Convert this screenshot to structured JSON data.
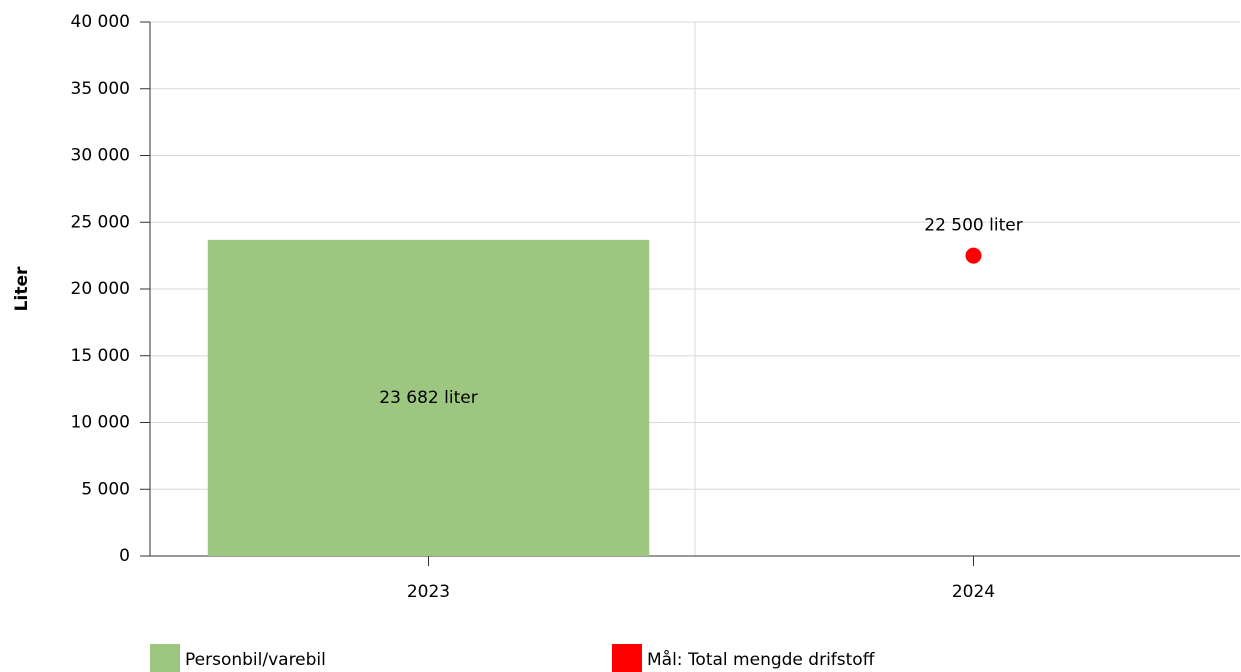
{
  "chart_data": {
    "type": "bar",
    "y_label": "Liter",
    "categories": [
      "2023",
      "2024"
    ],
    "series": [
      {
        "name": "Personbil/varebil",
        "type": "bar",
        "color": "#9dc681",
        "values": [
          23682,
          null
        ],
        "value_labels": [
          "23 682 liter",
          null
        ]
      },
      {
        "name": "Mål: Total mengde drifstoff",
        "type": "scatter",
        "color": "#ff0000",
        "values": [
          null,
          22500
        ],
        "value_labels": [
          null,
          "22 500 liter"
        ]
      }
    ],
    "ylim": [
      0,
      40000
    ],
    "yticks": [
      0,
      {
        "value": 5000,
        "label": "5 000"
      },
      {
        "value": 10000,
        "label": "10 000"
      },
      {
        "value": 15000,
        "label": "15 000"
      },
      {
        "value": 20000,
        "label": "20 000"
      },
      {
        "value": 25000,
        "label": "25 000"
      },
      {
        "value": 30000,
        "label": "30 000"
      },
      {
        "value": 35000,
        "label": "35 000"
      },
      {
        "value": 40000,
        "label": "40 000"
      }
    ],
    "grid": true,
    "legend": "bottom"
  }
}
